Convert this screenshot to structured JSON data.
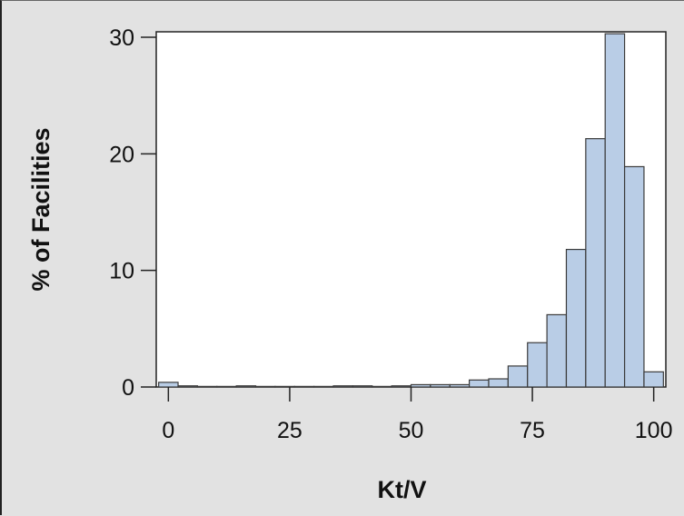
{
  "chart_data": {
    "type": "bar",
    "xlabel": "Kt/V",
    "ylabel": "% of Facilities",
    "xlim": [
      -2.5,
      102.5
    ],
    "ylim": [
      0,
      30
    ],
    "xticks": [
      0,
      25,
      50,
      75,
      100
    ],
    "yticks": [
      0,
      10,
      20,
      30
    ],
    "grid": false,
    "bin_width": 4,
    "bins": [
      {
        "x": 0,
        "value": 0.4
      },
      {
        "x": 4,
        "value": 0.1
      },
      {
        "x": 8,
        "value": 0.05
      },
      {
        "x": 12,
        "value": 0.05
      },
      {
        "x": 16,
        "value": 0.1
      },
      {
        "x": 20,
        "value": 0.05
      },
      {
        "x": 24,
        "value": 0.05
      },
      {
        "x": 28,
        "value": 0.05
      },
      {
        "x": 32,
        "value": 0.05
      },
      {
        "x": 36,
        "value": 0.1
      },
      {
        "x": 40,
        "value": 0.1
      },
      {
        "x": 44,
        "value": 0.05
      },
      {
        "x": 48,
        "value": 0.1
      },
      {
        "x": 52,
        "value": 0.2
      },
      {
        "x": 56,
        "value": 0.2
      },
      {
        "x": 60,
        "value": 0.2
      },
      {
        "x": 64,
        "value": 0.6
      },
      {
        "x": 68,
        "value": 0.7
      },
      {
        "x": 72,
        "value": 1.8
      },
      {
        "x": 76,
        "value": 3.8
      },
      {
        "x": 80,
        "value": 6.2
      },
      {
        "x": 84,
        "value": 11.8
      },
      {
        "x": 88,
        "value": 21.3
      },
      {
        "x": 92,
        "value": 30.3
      },
      {
        "x": 96,
        "value": 18.9
      },
      {
        "x": 100,
        "value": 1.3
      }
    ],
    "colors": {
      "bar_fill": "#b9cde6",
      "bar_stroke": "#3a3a3a",
      "plot_background": "#ffffff",
      "figure_background": "#e2e2e2",
      "axis": "#222222"
    }
  }
}
